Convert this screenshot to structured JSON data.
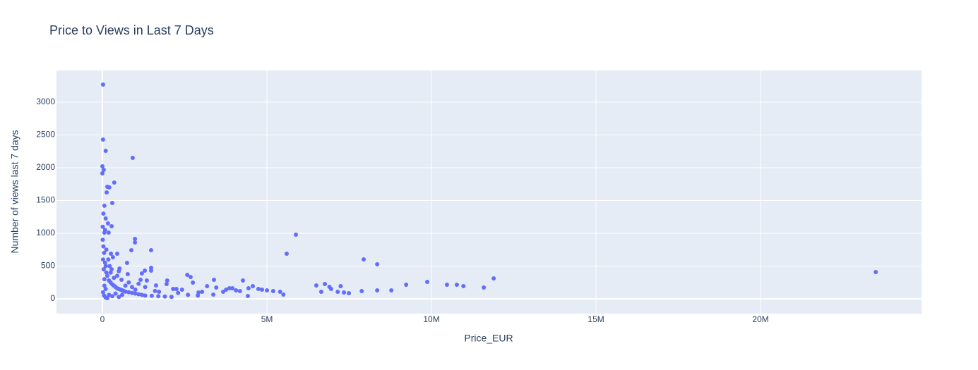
{
  "chart_data": {
    "type": "scatter",
    "title": "Price to Views in Last 7 Days",
    "xlabel": "Price_EUR",
    "ylabel": "Number of views last 7 days",
    "color": "#636efa",
    "grid": true,
    "xlim": [
      -1395000,
      24890000
    ],
    "xticks": [
      0,
      {
        "value": 5000000,
        "label": "5M"
      },
      {
        "value": 10000000,
        "label": "10M"
      },
      {
        "value": 15000000,
        "label": "15M"
      },
      {
        "value": 20000000,
        "label": "20M"
      }
    ],
    "ylim": [
      -226,
      3484
    ],
    "yticks": [
      0,
      500,
      1000,
      1500,
      2000,
      2500,
      3000
    ],
    "x": [
      20000,
      20000,
      100000,
      920000,
      0,
      40000,
      0,
      360000,
      150000,
      210000,
      130000,
      300000,
      60000,
      100000,
      170000,
      280000,
      990000,
      990000,
      880000,
      1480000,
      5880000,
      5600000,
      7940000,
      8350000,
      23500000,
      11890000,
      9870000,
      9230000,
      10470000,
      10770000,
      10970000,
      11590000,
      8780000,
      8350000,
      7880000,
      7490000,
      7340000,
      7150000,
      7240000,
      6950000,
      6760000,
      6500000,
      6650000,
      6900000,
      5500000,
      5400000,
      5190000,
      5000000,
      4850000,
      4740000,
      4570000,
      4440000,
      4420000,
      4270000,
      4180000,
      4060000,
      3950000,
      3860000,
      3760000,
      3670000,
      3460000,
      3390000,
      3370000,
      3180000,
      3030000,
      2920000,
      2750000,
      2680000,
      2580000,
      2420000,
      2250000,
      2150000,
      1970000,
      1950000,
      1720000,
      1630000,
      1480000,
      1480000,
      1350000,
      1290000,
      1200000,
      1160000,
      750000,
      520000,
      580000,
      770000,
      450000,
      260000,
      320000,
      190000,
      60000,
      10000,
      30000,
      50000,
      20000,
      80000,
      100000,
      40000,
      120000,
      150000,
      60000,
      200000,
      250000,
      300000,
      350000,
      400000,
      450000,
      500000,
      550000,
      600000,
      650000,
      700000,
      800000,
      900000,
      1000000,
      1100000,
      1200000,
      1300000,
      1500000,
      1700000,
      1900000,
      2100000,
      20000,
      50000,
      100000,
      150000,
      200000,
      300000,
      400000,
      500000,
      600000,
      700000,
      800000,
      900000,
      1000000,
      250000,
      350000,
      180000,
      120000,
      80000,
      30000,
      10000,
      220000,
      280000,
      500000,
      450000,
      1100000,
      1300000,
      1600000,
      2300000,
      2600000,
      2900000,
      60000,
      100000
    ],
    "y": [
      3269,
      2430,
      2258,
      2150,
      2022,
      1968,
      1914,
      1774,
      1710,
      1700,
      1624,
      1462,
      1420,
      1226,
      1150,
      1108,
      914,
      860,
      742,
      742,
      978,
      688,
      602,
      527,
      409,
      312,
      258,
      215,
      215,
      215,
      194,
      172,
      129,
      129,
      118,
      86,
      97,
      107,
      194,
      150,
      226,
      204,
      107,
      183,
      64,
      107,
      118,
      129,
      140,
      150,
      194,
      161,
      43,
      280,
      118,
      129,
      161,
      161,
      140,
      107,
      172,
      290,
      64,
      194,
      107,
      97,
      247,
      333,
      366,
      140,
      150,
      150,
      280,
      226,
      107,
      204,
      430,
      473,
      280,
      430,
      387,
      290,
      548,
      462,
      290,
      376,
      688,
      688,
      634,
      1010,
      1010,
      900,
      800,
      700,
      600,
      550,
      500,
      450,
      400,
      350,
      300,
      280,
      250,
      220,
      200,
      180,
      160,
      150,
      140,
      130,
      120,
      110,
      100,
      90,
      80,
      70,
      60,
      50,
      45,
      40,
      35,
      30,
      100,
      50,
      20,
      10,
      60,
      40,
      80,
      30,
      60,
      200,
      250,
      180,
      140,
      400,
      320,
      600,
      750,
      1050,
      1300,
      1100,
      500,
      450,
      420,
      350,
      230,
      180,
      120,
      90,
      60,
      50,
      200,
      150
    ]
  }
}
